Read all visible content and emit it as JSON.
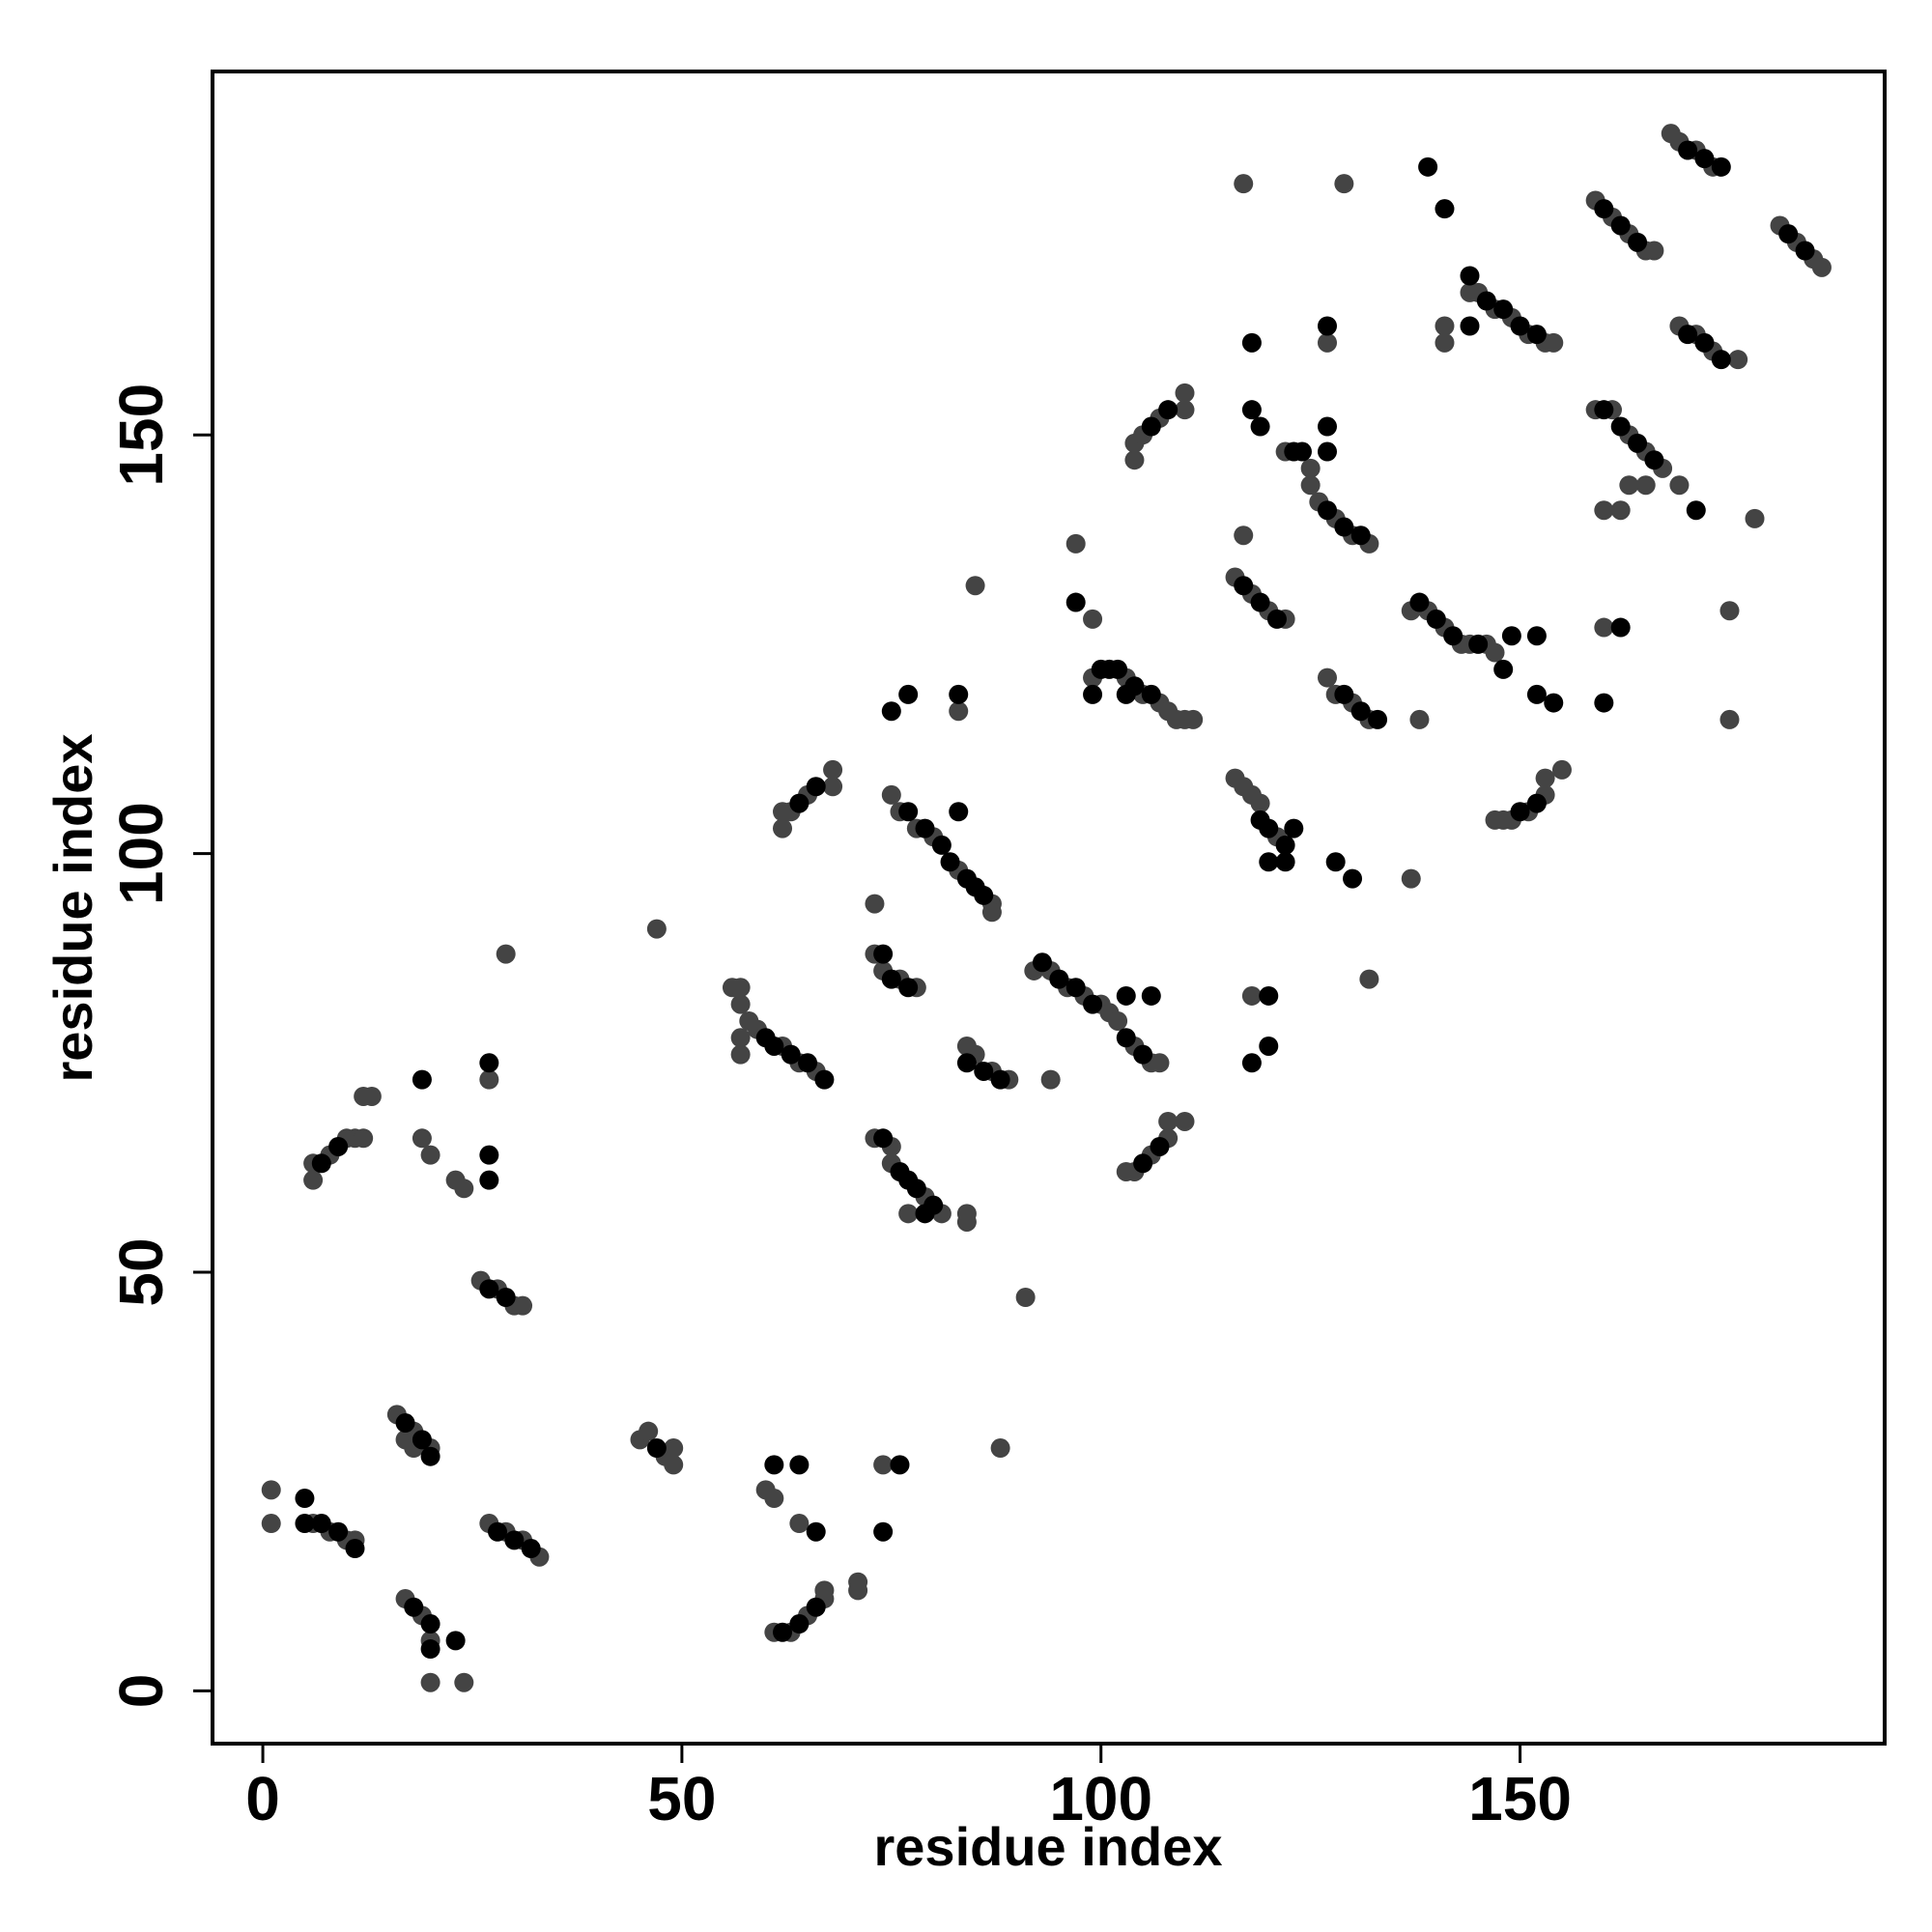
{
  "chart_data": {
    "type": "scatter",
    "xlabel": "residue index",
    "ylabel": "residue index",
    "xlim": [
      -6,
      193.5
    ],
    "ylim": [
      -6.3,
      193.4
    ],
    "xticks": [
      0,
      50,
      100,
      150
    ],
    "yticks": [
      0,
      50,
      100,
      150
    ],
    "series": [
      {
        "color": "#444444",
        "x": [
          1,
          1,
          6,
          8,
          10,
          11,
          16,
          18,
          20,
          17,
          18,
          17,
          19,
          20,
          20,
          24,
          27,
          29,
          31,
          33,
          26,
          28,
          30,
          31,
          6,
          6,
          8,
          10,
          11,
          12,
          13,
          12,
          19,
          20,
          23,
          24,
          27,
          29,
          45,
          46,
          48,
          49,
          49,
          47,
          60,
          61,
          64,
          61,
          63,
          65,
          67,
          67,
          71,
          71,
          74,
          88,
          56,
          57,
          57,
          58,
          59,
          62,
          64,
          66,
          57,
          57,
          62,
          62,
          63,
          65,
          68,
          68,
          73,
          74,
          76,
          78,
          73,
          75,
          75,
          79,
          81,
          84,
          84,
          77,
          73,
          75,
          76,
          78,
          80,
          83,
          87,
          87,
          83,
          85,
          84,
          85,
          87,
          89,
          91,
          92,
          94,
          96,
          98,
          100,
          101,
          102,
          104,
          106,
          107,
          94,
          103,
          104,
          106,
          108,
          108,
          110,
          97,
          99,
          99,
          103,
          105,
          107,
          108,
          109,
          110,
          111,
          104,
          104,
          105,
          107,
          110,
          110,
          117,
          116,
          117,
          118,
          119,
          121,
          118,
          116,
          118,
          120,
          122,
          117,
          122,
          125,
          125,
          126,
          128,
          130,
          132,
          127,
          129,
          127,
          128,
          130,
          132,
          132,
          137,
          139,
          141,
          143,
          144,
          146,
          147,
          137,
          138,
          141,
          141,
          144,
          145,
          147,
          149,
          151,
          153,
          154,
          147,
          148,
          149,
          151,
          153,
          153,
          155,
          159,
          161,
          163,
          165,
          166,
          159,
          161,
          163,
          165,
          167,
          165,
          163,
          160,
          162,
          160,
          169,
          175,
          175,
          178,
          168,
          169,
          171,
          173,
          169,
          171,
          173,
          176,
          181,
          183,
          185,
          186
        ],
        "values": [
          24,
          20,
          20,
          19,
          18,
          18,
          33,
          31,
          29,
          30,
          29,
          11,
          9,
          6,
          1,
          1,
          20,
          19,
          18,
          16,
          49,
          48,
          46,
          46,
          61,
          63,
          64,
          66,
          66,
          66,
          71,
          71,
          66,
          64,
          61,
          60,
          73,
          88,
          30,
          31,
          28,
          27,
          29,
          91,
          24,
          23,
          20,
          7,
          7,
          9,
          11,
          12,
          13,
          12,
          27,
          29,
          84,
          84,
          82,
          80,
          79,
          77,
          75,
          74,
          78,
          76,
          103,
          105,
          105,
          107,
          108,
          110,
          88,
          86,
          85,
          84,
          66,
          65,
          63,
          59,
          57,
          56,
          57,
          57,
          94,
          107,
          105,
          103,
          102,
          98,
          94,
          93,
          117,
          132,
          77,
          76,
          74,
          73,
          47,
          86,
          86,
          84,
          83,
          82,
          81,
          80,
          77,
          75,
          75,
          73,
          62,
          62,
          64,
          66,
          68,
          68,
          137,
          128,
          121,
          121,
          119,
          118,
          117,
          116,
          116,
          116,
          147,
          149,
          150,
          152,
          153,
          155,
          180,
          109,
          108,
          107,
          106,
          102,
          83,
          133,
          131,
          129,
          128,
          138,
          148,
          146,
          144,
          142,
          140,
          138,
          137,
          161,
          180,
          121,
          119,
          118,
          116,
          85,
          129,
          129,
          127,
          125,
          125,
          125,
          124,
          97,
          116,
          163,
          161,
          167,
          167,
          165,
          164,
          162,
          161,
          161,
          104,
          104,
          104,
          105,
          107,
          109,
          110,
          178,
          176,
          174,
          172,
          172,
          153,
          153,
          150,
          148,
          146,
          144,
          144,
          141,
          141,
          127,
          144,
          129,
          116,
          140,
          186,
          185,
          184,
          182,
          163,
          162,
          160,
          159,
          175,
          173,
          171,
          170
        ]
      },
      {
        "color": "#000000",
        "x": [
          5,
          5,
          7,
          9,
          11,
          17,
          19,
          20,
          18,
          20,
          20,
          23,
          28,
          30,
          32,
          27,
          29,
          7,
          9,
          19,
          27,
          27,
          27,
          47,
          61,
          64,
          66,
          62,
          64,
          66,
          76,
          74,
          60,
          61,
          63,
          65,
          67,
          64,
          66,
          74,
          75,
          77,
          74,
          76,
          77,
          78,
          80,
          79,
          77,
          79,
          81,
          82,
          84,
          85,
          86,
          75,
          77,
          83,
          83,
          84,
          86,
          88,
          93,
          95,
          97,
          99,
          103,
          105,
          103,
          106,
          105,
          107,
          97,
          100,
          101,
          102,
          104,
          106,
          99,
          103,
          106,
          108,
          119,
          120,
          122,
          123,
          120,
          122,
          120,
          118,
          120,
          117,
          119,
          121,
          118,
          118,
          119,
          123,
          124,
          127,
          129,
          131,
          127,
          127,
          127,
          129,
          131,
          133,
          128,
          130,
          138,
          140,
          142,
          145,
          148,
          149,
          152,
          139,
          141,
          144,
          146,
          148,
          150,
          152,
          144,
          152,
          154,
          150,
          152,
          160,
          162,
          164,
          160,
          162,
          164,
          166,
          162,
          160,
          171,
          170,
          172,
          174,
          170,
          172,
          174,
          182,
          184
        ],
        "values": [
          23,
          20,
          20,
          19,
          17,
          32,
          30,
          28,
          10,
          8,
          5,
          6,
          19,
          18,
          17,
          48,
          47,
          63,
          65,
          73,
          75,
          64,
          61,
          29,
          27,
          27,
          19,
          7,
          8,
          10,
          27,
          19,
          78,
          77,
          76,
          75,
          73,
          106,
          108,
          88,
          85,
          84,
          66,
          62,
          61,
          60,
          58,
          57,
          105,
          103,
          101,
          99,
          97,
          96,
          95,
          117,
          119,
          119,
          105,
          75,
          74,
          73,
          87,
          85,
          84,
          82,
          78,
          76,
          83,
          83,
          63,
          65,
          130,
          122,
          122,
          122,
          120,
          119,
          119,
          119,
          151,
          153,
          104,
          103,
          101,
          103,
          99,
          99,
          83,
          75,
          77,
          132,
          130,
          128,
          161,
          153,
          151,
          148,
          148,
          141,
          139,
          138,
          148,
          151,
          163,
          119,
          117,
          116,
          99,
          97,
          130,
          128,
          126,
          125,
          122,
          126,
          126,
          182,
          177,
          169,
          166,
          165,
          163,
          162,
          163,
          119,
          118,
          105,
          106,
          177,
          175,
          173,
          153,
          151,
          149,
          147,
          127,
          118,
          141,
          184,
          183,
          182,
          162,
          161,
          159,
          174,
          172
        ]
      }
    ]
  }
}
